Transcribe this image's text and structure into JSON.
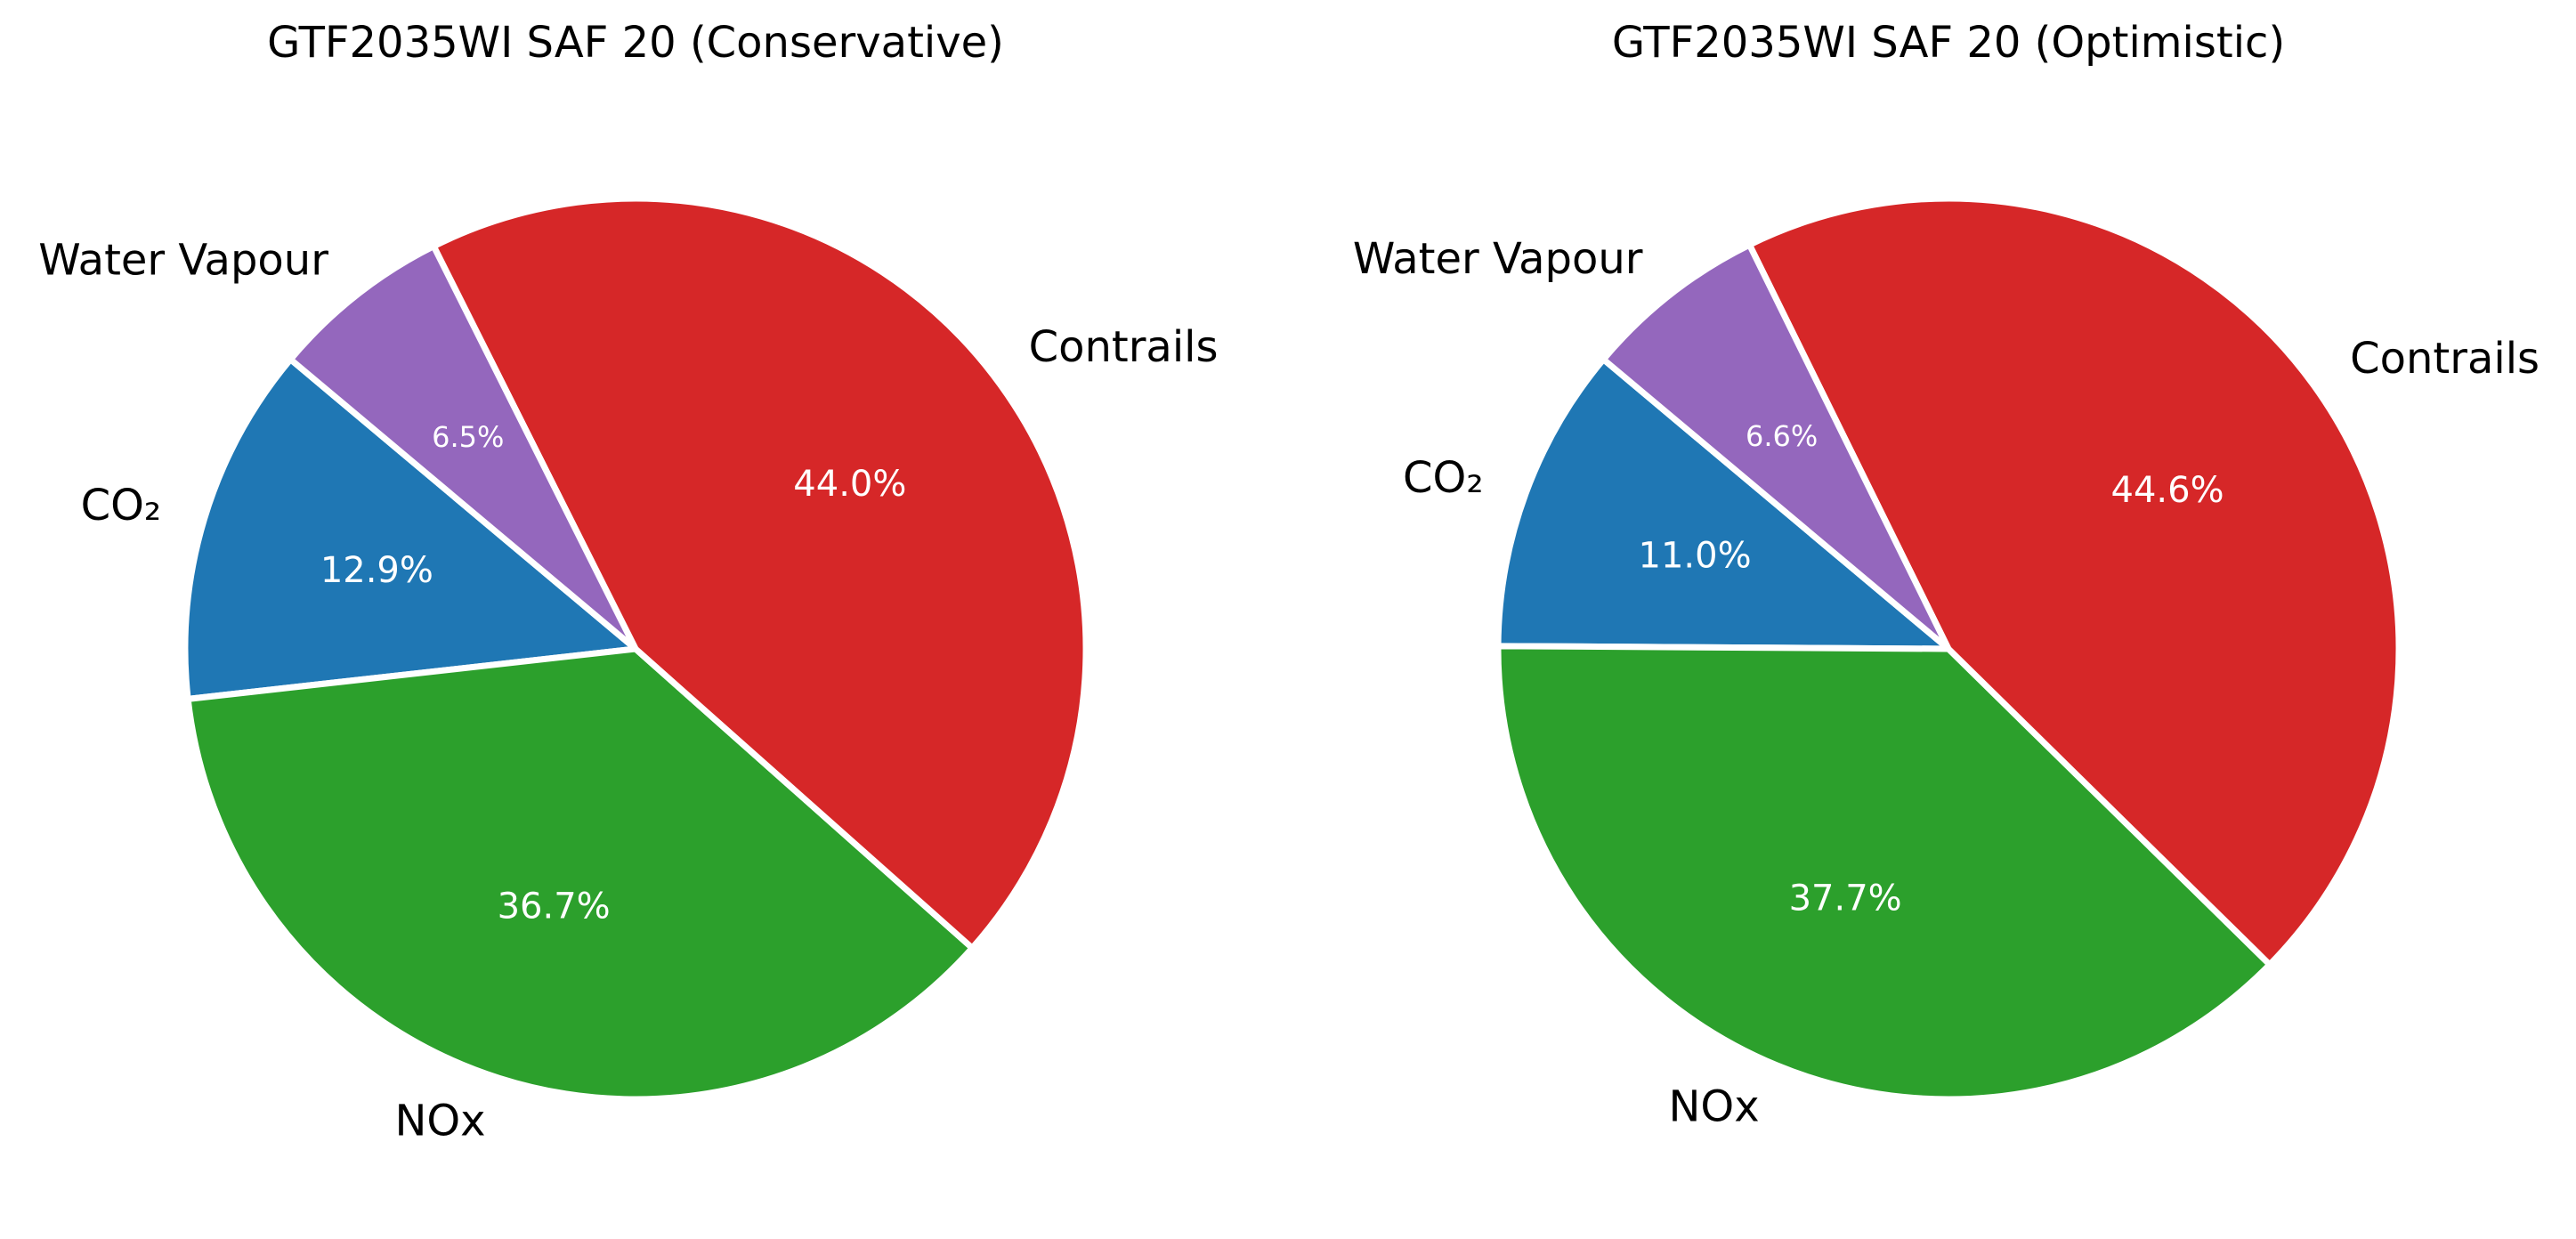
{
  "chart_data": [
    {
      "type": "pie",
      "title": "GTF2035WI SAF 20 (Conservative)",
      "slices": [
        {
          "label": "CO₂",
          "value": 12.9,
          "pct_label": "12.9%",
          "color": "#1f77b4"
        },
        {
          "label": "NOx",
          "value": 36.7,
          "pct_label": "36.7%",
          "color": "#2ca02c"
        },
        {
          "label": "Contrails",
          "value": 44.0,
          "pct_label": "44.0%",
          "color": "#d62728"
        },
        {
          "label": "Water Vapour",
          "value": 6.5,
          "pct_label": "6.5%",
          "color": "#9467bd"
        }
      ],
      "start_angle_deg": 140,
      "direction": "counterclockwise"
    },
    {
      "type": "pie",
      "title": "GTF2035WI SAF 20 (Optimistic)",
      "slices": [
        {
          "label": "CO₂",
          "value": 11.0,
          "pct_label": "11.0%",
          "color": "#1f77b4"
        },
        {
          "label": "NOx",
          "value": 37.7,
          "pct_label": "37.7%",
          "color": "#2ca02c"
        },
        {
          "label": "Contrails",
          "value": 44.6,
          "pct_label": "44.6%",
          "color": "#d62728"
        },
        {
          "label": "Water Vapour",
          "value": 6.6,
          "pct_label": "6.6%",
          "color": "#9467bd"
        }
      ],
      "start_angle_deg": 140,
      "direction": "counterclockwise"
    }
  ]
}
